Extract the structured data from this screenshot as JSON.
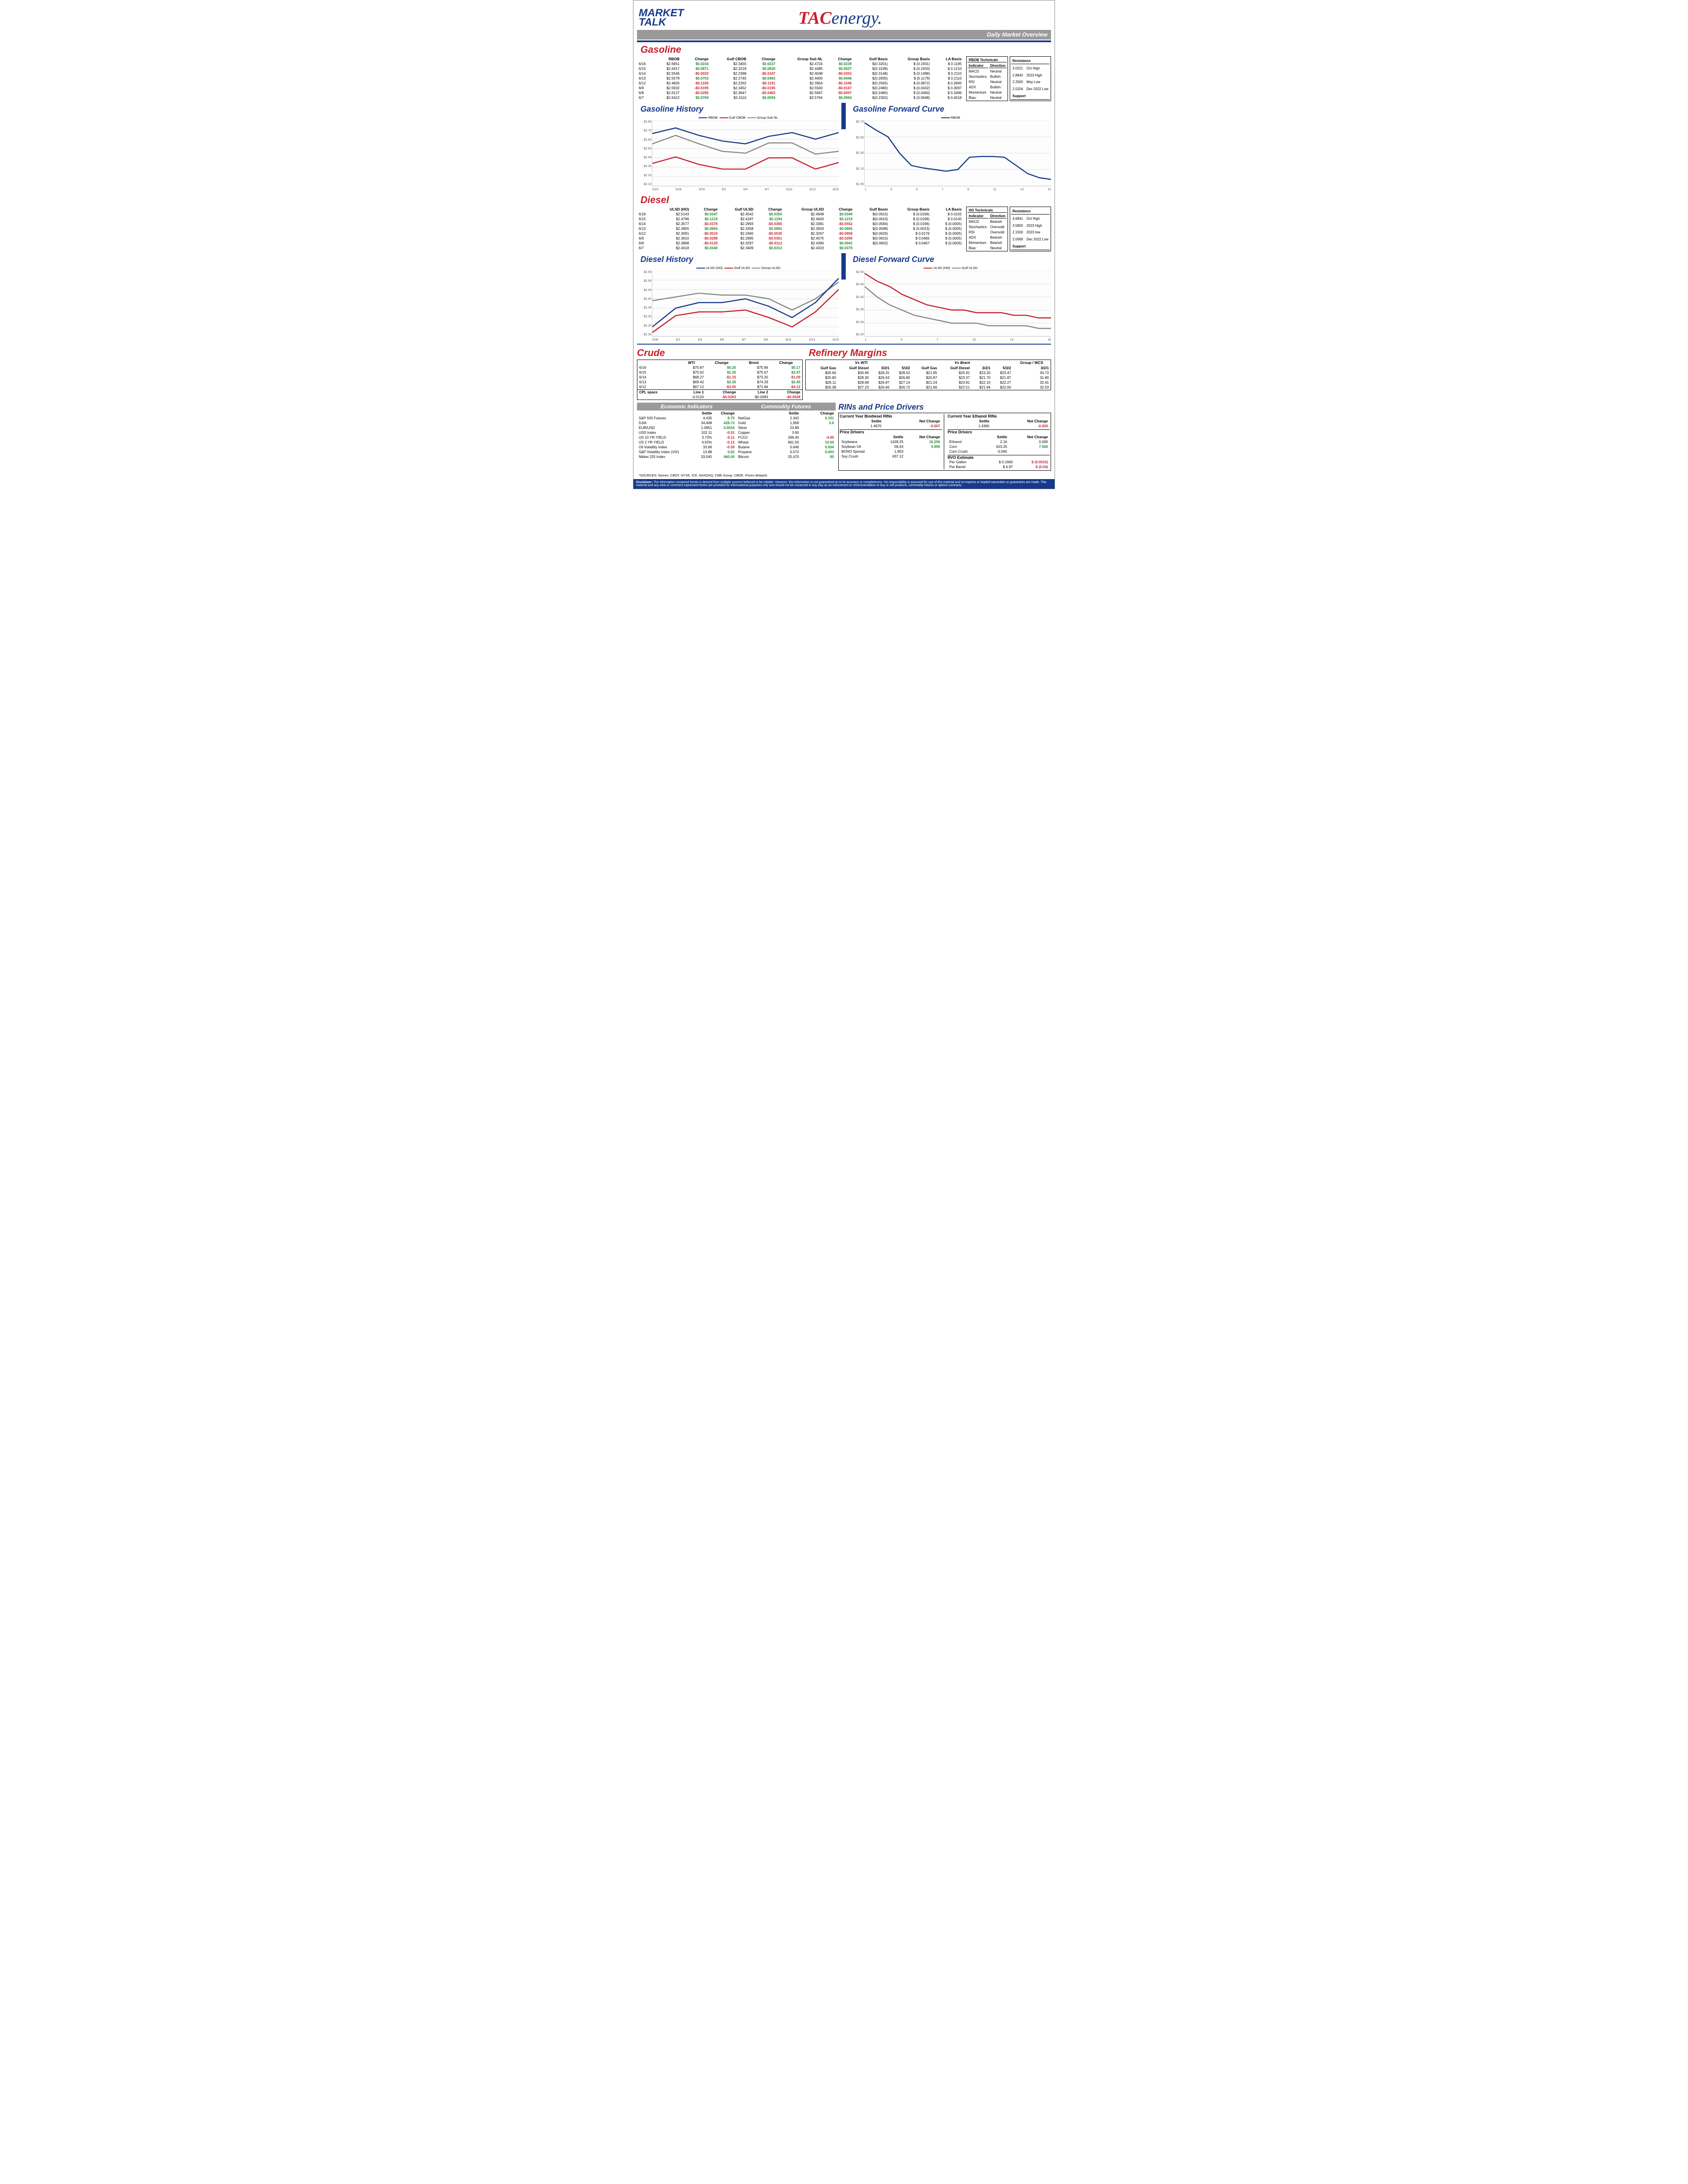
{
  "page": {
    "logo_left_top": "MARKET",
    "logo_left_bottom": "TALK",
    "logo_center_a": "TAC",
    "logo_center_b": "energy.",
    "grey_bar_label": "Daily Market Overview",
    "sources": "*SOURCES: Nymex, CBOT, NYSE, ICE, NASDAQ, CME Group, CBOE.   Prices delayed.",
    "disclaimer_label": "Disclaimer:",
    "disclaimer": "The information contained herein is derived from multiple sources believed to be reliable. However, this information is not guaranteed as to its accuracy or completeness. No responsibility is assumed for use of this material and no express or implied warranties or guarantees are made. This material and any view or comment expressed herein are provided for informational purposes only and should not be construed in any way as an inducement or recommendation to buy or sell products, commodity futures or options contracts."
  },
  "gasoline": {
    "title": "Gasoline",
    "headers": [
      "",
      "RBOB",
      "Change",
      "Gulf CBOB",
      "Change",
      "Group Sub NL",
      "Change",
      "Gulf Basis",
      "Group Basis",
      "LA Basis"
    ],
    "rows": [
      [
        "6/16",
        "$2.6651",
        "+$0.0234",
        "$2.3455",
        "+$0.0237",
        "$2.4724",
        "+$0.0239",
        "$(0.3201)",
        "$ (0.1931)",
        "$ 0.1195"
      ],
      [
        "6/15",
        "$2.6417",
        "+$0.0871",
        "$2.3218",
        "+$0.0820",
        "$2.4485",
        "+$0.0437",
        "$(0.3199)",
        "$ (0.1933)",
        "$ 0.1210"
      ],
      [
        "6/14",
        "$2.5546",
        "-$0.0033",
        "$2.2398",
        "-$0.0347",
        "$2.4048",
        "-$0.0352",
        "$(0.3148)",
        "$ (0.1498)",
        "$ 0.2110"
      ],
      [
        "6/13",
        "$2.5579",
        "+$0.0753",
        "$2.2745",
        "+$0.0483",
        "$2.4400",
        "+$0.0446",
        "$(0.2835)",
        "$ (0.1179)",
        "$ 0.2110"
      ],
      [
        "6/12",
        "$2.4826",
        "-$0.1106",
        "$2.2262",
        "-$0.1191",
        "$2.3954",
        "-$0.1546",
        "$(0.2565)",
        "$ (0.0872)",
        "$ 0.2845"
      ],
      [
        "6/9",
        "$2.5932",
        "-$0.0195",
        "$2.3452",
        "-$0.0195",
        "$2.5500",
        "-$0.0167",
        "$(0.2480)",
        "$ (0.0432)",
        "$ 0.3097"
      ],
      [
        "6/8",
        "$2.6127",
        "-$0.0285",
        "$2.3647",
        "-$0.0463",
        "$2.5667",
        "-$0.0097",
        "$(0.2480)",
        "$ (0.0460)",
        "$ 0.3496"
      ],
      [
        "6/7",
        "$2.6412",
        "+$0.0769",
        "$2.4110",
        "+$0.0594",
        "$2.5764",
        "+$0.0994",
        "$(0.2302)",
        "$ (0.0648)",
        "$ 0.4018"
      ]
    ],
    "tech_title": "RBOB Technicals",
    "tech_headers": [
      "Indicator",
      "Direction"
    ],
    "tech_rows": [
      [
        "MACD",
        "Neutral"
      ],
      [
        "Stochastics",
        "Bullish"
      ],
      [
        "RSI",
        "Neutral"
      ],
      [
        "ADX",
        "Bullish"
      ],
      [
        "Momentum",
        "Neutral"
      ],
      [
        "Bias:",
        "Neutral"
      ]
    ],
    "sr_rows_r": [
      [
        "Resistance",
        ""
      ],
      [
        "3.0221",
        "Oct High"
      ],
      [
        "2.8943",
        "2023 High"
      ]
    ],
    "sr_rows_s": [
      [
        "2.2500",
        "May Low"
      ],
      [
        "2.0204",
        "Dec 2022 Low"
      ],
      [
        "Support",
        ""
      ]
    ],
    "history_title": "Gasoline History",
    "forward_title": "Gasoline Forward Curve"
  },
  "gas_history": {
    "legend": [
      "RBOB",
      "Gulf CBOB",
      "Group Sub NL"
    ],
    "legend_colors": [
      "#163a8a",
      "#c71f2d",
      "#888888"
    ],
    "x": [
      "5/23",
      "5/26",
      "5/29",
      "6/1",
      "6/4",
      "6/7",
      "6/10",
      "6/13",
      "6/16"
    ],
    "ylim": [
      2.1,
      2.8
    ],
    "ytick": 0.1,
    "series": [
      {
        "name": "RBOB",
        "color": "#163a8a",
        "y": [
          2.66,
          2.72,
          2.64,
          2.58,
          2.55,
          2.63,
          2.67,
          2.6,
          2.67
        ]
      },
      {
        "name": "Group Sub NL",
        "color": "#888888",
        "y": [
          2.55,
          2.64,
          2.55,
          2.47,
          2.45,
          2.56,
          2.56,
          2.44,
          2.47
        ]
      },
      {
        "name": "Gulf CBOB",
        "color": "#c71f2d",
        "y": [
          2.34,
          2.41,
          2.33,
          2.28,
          2.28,
          2.4,
          2.4,
          2.28,
          2.35
        ]
      }
    ]
  },
  "gas_forward": {
    "legend": [
      "RBOB"
    ],
    "legend_colors": [
      "#163a8a"
    ],
    "x": [
      "1",
      "3",
      "5",
      "7",
      "9",
      "11",
      "13",
      "15"
    ],
    "ylim": [
      1.9,
      2.7
    ],
    "ytick": 0.2,
    "series": [
      {
        "name": "RBOB",
        "color": "#163a8a",
        "y": [
          2.67,
          2.58,
          2.5,
          2.3,
          2.15,
          2.12,
          2.1,
          2.08,
          2.1,
          2.25,
          2.26,
          2.26,
          2.25,
          2.15,
          2.05,
          2.0,
          1.98
        ]
      }
    ]
  },
  "diesel": {
    "title": "Diesel",
    "headers": [
      "",
      "ULSD (HO)",
      "Change",
      "Gulf ULSD",
      "Change",
      "Group ULSD",
      "Change",
      "Gulf Basis",
      "Group Basis",
      "LA Basis"
    ],
    "rows": [
      [
        "6/16",
        "$2.5143",
        "+$0.0347",
        "$2.4542",
        "+$0.0350",
        "$2.4949",
        "+$0.0349",
        "$(0.0615)",
        "$ (0.0196)",
        "$ 0.0155"
      ],
      [
        "6/15",
        "$2.4796",
        "+$0.1219",
        "$2.4187",
        "+$0.1194",
        "$2.4600",
        "+$0.1219",
        "$(0.0610)",
        "$ (0.0196)",
        "$ 0.0145"
      ],
      [
        "6/14",
        "$2.3577",
        "-$0.0378",
        "$2.2993",
        "-$0.0365",
        "$2.3381",
        "-$0.0552",
        "$(0.0584)",
        "$ (0.0196)",
        "$ (0.0005)"
      ],
      [
        "6/13",
        "$2.3955",
        "+$0.0864",
        "$2.3358",
        "+$0.0892",
        "$2.3933",
        "+$0.0665",
        "$(0.0598)",
        "$ (0.0023)",
        "$ (0.0005)"
      ],
      [
        "6/12",
        "$2.3091",
        "-$0.0519",
        "$2.2465",
        "-$0.0530",
        "$2.3267",
        "-$0.0808",
        "$(0.0626)",
        "$ 0.0176",
        "$ (0.0005)"
      ],
      [
        "6/9",
        "$2.3610",
        "-$0.0288",
        "$2.2995",
        "-$0.0301",
        "$2.4075",
        "-$0.0290",
        "$(0.0615)",
        "$ 0.0465",
        "$ (0.0005)"
      ],
      [
        "6/8",
        "$2.3898",
        "-$0.0120",
        "$2.3297",
        "-$0.0112",
        "$2.4366",
        "+$0.0042",
        "$(0.0602)",
        "$ 0.0467",
        "$ (0.0005)"
      ],
      [
        "6/7",
        "$2.4018",
        "+$0.0340",
        "$2.3409",
        "+$0.0313",
        "$2.4323",
        "+$0.0379",
        "",
        "",
        ""
      ]
    ],
    "tech_title": "HO Technicals",
    "tech_rows": [
      [
        "MACD",
        "Bearish"
      ],
      [
        "Stochastics",
        "Oversold"
      ],
      [
        "RSI",
        "Oversold"
      ],
      [
        "ADX",
        "Bearish"
      ],
      [
        "Momentum",
        "Bearish"
      ],
      [
        "Bias:",
        "Neutral"
      ]
    ],
    "sr_rows_r": [
      [
        "Resistance",
        ""
      ],
      [
        "4.6841",
        "Oct High"
      ],
      [
        "3.5800",
        "2023 High"
      ]
    ],
    "sr_rows_s": [
      [
        "2.1500",
        "2023 low"
      ],
      [
        "2.0069",
        "Dec 2022 Low"
      ],
      [
        "Support",
        ""
      ]
    ],
    "history_title": "Diesel History",
    "forward_title": "Diesel Forward Curve"
  },
  "diesel_history": {
    "legend": [
      "ULSD (HO)",
      "Gulf ULSD",
      "Group ULSD"
    ],
    "legend_colors": [
      "#163a8a",
      "#c71f2d",
      "#888888"
    ],
    "x": [
      "5/30",
      "6/1",
      "6/3",
      "6/5",
      "6/7",
      "6/9",
      "6/11",
      "6/13",
      "6/15"
    ],
    "ylim": [
      2.2,
      2.55
    ],
    "ytick": 0.05,
    "series": [
      {
        "name": "Group ULSD",
        "color": "#888888",
        "y": [
          2.39,
          2.41,
          2.43,
          2.42,
          2.42,
          2.4,
          2.34,
          2.4,
          2.49
        ]
      },
      {
        "name": "ULSD",
        "color": "#163a8a",
        "y": [
          2.25,
          2.35,
          2.38,
          2.38,
          2.4,
          2.36,
          2.3,
          2.38,
          2.51
        ]
      },
      {
        "name": "Gulf ULSD",
        "color": "#c71f2d",
        "y": [
          2.22,
          2.31,
          2.33,
          2.33,
          2.34,
          2.3,
          2.25,
          2.33,
          2.45
        ]
      }
    ]
  },
  "diesel_forward": {
    "legend": [
      "ULSD (HO)",
      "Gulf ULSD"
    ],
    "legend_colors": [
      "#c71f2d",
      "#888888"
    ],
    "x": [
      "1",
      "4",
      "7",
      "10",
      "13",
      "16"
    ],
    "ylim": [
      2.25,
      2.5
    ],
    "ytick": 0.05,
    "series": [
      {
        "name": "ULSD",
        "color": "#c71f2d",
        "y": [
          2.49,
          2.46,
          2.44,
          2.41,
          2.39,
          2.37,
          2.36,
          2.35,
          2.35,
          2.34,
          2.34,
          2.34,
          2.33,
          2.33,
          2.32,
          2.32
        ]
      },
      {
        "name": "Gulf",
        "color": "#888888",
        "y": [
          2.44,
          2.4,
          2.37,
          2.35,
          2.33,
          2.32,
          2.31,
          2.3,
          2.3,
          2.3,
          2.29,
          2.29,
          2.29,
          2.29,
          2.28,
          2.28
        ]
      }
    ]
  },
  "crude": {
    "title": "Crude",
    "headers": [
      "",
      "WTI",
      "Change",
      "Brent",
      "Change"
    ],
    "rows": [
      [
        "6/16",
        "$70.87",
        "+$0.25",
        "$75.84",
        "+$0.17"
      ],
      [
        "6/15",
        "$70.62",
        "+$2.35",
        "$75.67",
        "+$2.47"
      ],
      [
        "6/14",
        "$68.27",
        "-$1.15",
        "$73.20",
        "-$1.09"
      ],
      [
        "6/13",
        "$69.42",
        "+$2.30",
        "$74.29",
        "+$2.45"
      ],
      [
        "6/12",
        "$67.12",
        "-$3.05",
        "$71.84",
        "-$4.12"
      ]
    ],
    "cpl": [
      "CPL space",
      "Line 1",
      "Change",
      "Line 2",
      "Change"
    ],
    "cpl_vals": [
      "",
      "-0.0120",
      "-$0.0283",
      "-$0.0083",
      "-$0.0038"
    ]
  },
  "refinery": {
    "title": "Refinery Margins",
    "group_headers": [
      "Vs WTI",
      "Vs Brent",
      "Group / WCS"
    ],
    "sub_headers": [
      "",
      "Gulf Gas",
      "Gulf Diesel",
      "3/2/1",
      "5/3/2",
      "Gulf Gas",
      "Gulf Diesel",
      "3/2/1",
      "5/3/2",
      "3/2/1"
    ],
    "rows": [
      [
        " ",
        "$26.90",
        "$30.96",
        "$28.25",
        "$28.52",
        "$21.85",
        "$25.91",
        "$23.20",
        "$23.47",
        "34.73"
      ],
      [
        " ",
        "$25.80",
        "$28.30",
        "$26.63",
        "$26.80",
        "$20.87",
        "$23.37",
        "$21.70",
        "$21.87",
        "31.80"
      ],
      [
        " ",
        "$26.11",
        "$28.68",
        "$26.97",
        "$27.14",
        "$21.24",
        "$23.81",
        "$22.10",
        "$22.27",
        "32.41"
      ],
      [
        " ",
        "$26.38",
        "$27.23",
        "$26.66",
        "$26.72",
        "$21.66",
        "$22.51",
        "$21.94",
        "$22.00",
        "32.53"
      ]
    ]
  },
  "econ": {
    "title": "Economic Indicators",
    "headers": [
      "",
      "Settle",
      "Change"
    ],
    "rows": [
      [
        "S&P 500 Futures",
        "4,435",
        "+8.75"
      ],
      [
        "DJIA",
        "34,408",
        "+428.73"
      ],
      [
        "EUR/USD",
        "1.0951",
        "+0.0016"
      ],
      [
        "USD Index",
        "102.11",
        "-0.01"
      ],
      [
        "US 10 YR YIELD",
        "3.72%",
        "-0.11"
      ],
      [
        "US 2 YR YIELD",
        "4.62%",
        "-0.12"
      ],
      [
        "Oil Volatility Index",
        "33.66",
        "-0.59"
      ],
      [
        "S&P Volatility Index (VIX)",
        "13.88",
        "+0.62"
      ],
      [
        "Nikkei 225 Index",
        "33,545",
        "+460.00"
      ]
    ]
  },
  "comm": {
    "title": "Commodity Futures",
    "headers": [
      "",
      "Settle",
      "Change"
    ],
    "rows": [
      [
        "NatGas",
        "2.342",
        "+0.191"
      ],
      [
        "Gold",
        "1,958",
        "+3.6"
      ],
      [
        "Silver",
        "23.89",
        ""
      ],
      [
        "Copper",
        "3.90",
        ""
      ],
      [
        "FCOJ",
        "266.40",
        "-4.45"
      ],
      [
        "Wheat",
        "661.50",
        "+10.00"
      ],
      [
        "Butane",
        "0.646",
        "+0.004"
      ],
      [
        "Propane",
        "0.572",
        "+0.003"
      ],
      [
        "Bitcoin",
        "25,470",
        "+85"
      ]
    ]
  },
  "rins": {
    "title": "RINs and Price Drivers",
    "bio_title": "Current Year Biodiesel RINs",
    "bio_headers": [
      "",
      "Settle",
      "Net Change"
    ],
    "bio_row": [
      "",
      "1.4670",
      "-0.007"
    ],
    "eth_title": "Current Year Ethanol RINs",
    "eth_row": [
      "",
      "1.4360",
      "-0.005"
    ],
    "pd1_title": "Price Drivers",
    "pd1_headers": [
      "",
      "Settle",
      "Net Change"
    ],
    "pd1": [
      [
        "Soybeans",
        "1428.25",
        "+16.250"
      ],
      [
        "Soybean Oil",
        "58.43",
        "+0.990"
      ],
      [
        "BOHO Spread",
        "1.903",
        ""
      ],
      [
        "Soy Crush",
        "637.12",
        ""
      ]
    ],
    "pd2_title": "Price Drivers",
    "pd2_headers": [
      "",
      "Settle",
      "Net Change"
    ],
    "pd2": [
      [
        "Ethanol",
        "2.16",
        "0.000"
      ],
      [
        "Corn",
        "623.25",
        "+7.500"
      ],
      [
        "Corn Crush",
        "-0.065",
        ""
      ]
    ],
    "rvo_title": "RVO Estimate",
    "rvo": [
      [
        "Per Gallon",
        "$ 0.1660",
        "-$ (0.0010)"
      ],
      [
        "Per Barrel",
        "$ 6.97",
        "-$ (0.04)"
      ]
    ]
  }
}
